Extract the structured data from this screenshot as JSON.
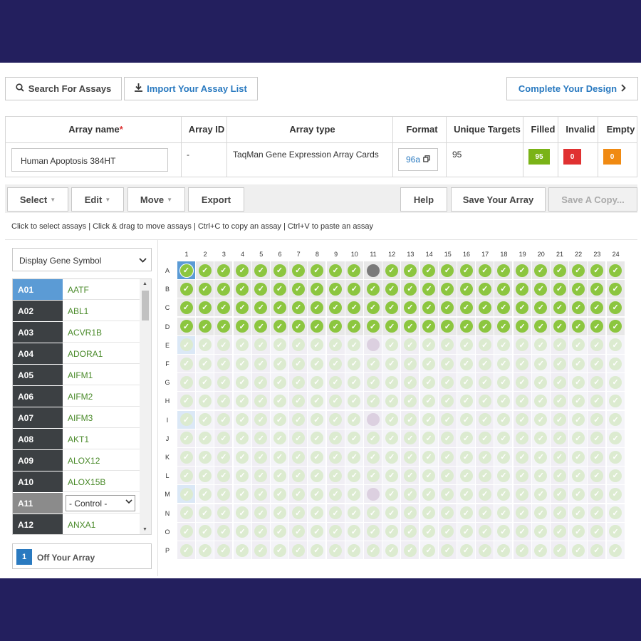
{
  "top": {
    "search_label": "Search For Assays",
    "import_label": "Import Your Assay List",
    "complete_label": "Complete Your Design"
  },
  "info": {
    "headers": {
      "array_name": "Array name",
      "required_mark": "*",
      "array_id": "Array ID",
      "array_type": "Array type",
      "format": "Format",
      "unique_targets": "Unique Targets",
      "filled": "Filled",
      "invalid": "Invalid",
      "empty": "Empty"
    },
    "array_name_value": "Human Apoptosis 384HT",
    "array_id_value": "-",
    "array_type_value": "TaqMan Gene Expression Array Cards",
    "format_value": "96a",
    "unique_targets_value": "95",
    "filled_count": "95",
    "invalid_count": "0",
    "empty_count": "0",
    "colors": {
      "filled": "#7ab317",
      "invalid": "#e03131",
      "empty": "#f08a12"
    }
  },
  "toolbar": {
    "select_label": "Select",
    "edit_label": "Edit",
    "move_label": "Move",
    "export_label": "Export",
    "help_label": "Help",
    "save_label": "Save Your Array",
    "save_copy_label": "Save A Copy..."
  },
  "hint": "Click to select assays | Click & drag to move assays | Ctrl+C to copy an assay | Ctrl+V to paste an assay",
  "display_select": "Display Gene Symbol",
  "list": [
    {
      "well": "A01",
      "gene": "AATF",
      "state": "selected"
    },
    {
      "well": "A02",
      "gene": "ABL1",
      "state": "normal"
    },
    {
      "well": "A03",
      "gene": "ACVR1B",
      "state": "normal"
    },
    {
      "well": "A04",
      "gene": "ADORA1",
      "state": "normal"
    },
    {
      "well": "A05",
      "gene": "AIFM1",
      "state": "normal"
    },
    {
      "well": "A06",
      "gene": "AIFM2",
      "state": "normal"
    },
    {
      "well": "A07",
      "gene": "AIFM3",
      "state": "normal"
    },
    {
      "well": "A08",
      "gene": "AKT1",
      "state": "normal"
    },
    {
      "well": "A09",
      "gene": "ALOX12",
      "state": "normal"
    },
    {
      "well": "A10",
      "gene": "ALOX15B",
      "state": "normal"
    },
    {
      "well": "A11",
      "gene": "- Control -",
      "state": "control"
    },
    {
      "well": "A12",
      "gene": "ANXA1",
      "state": "normal"
    }
  ],
  "off_array": {
    "count": "1",
    "label": "Off Your Array"
  },
  "grid": {
    "columns": [
      "1",
      "2",
      "3",
      "4",
      "5",
      "6",
      "7",
      "8",
      "9",
      "10",
      "11",
      "12",
      "13",
      "14",
      "15",
      "16",
      "17",
      "18",
      "19",
      "20",
      "21",
      "22",
      "23",
      "24"
    ],
    "rows": [
      "A",
      "B",
      "C",
      "D",
      "E",
      "F",
      "G",
      "H",
      "I",
      "J",
      "K",
      "L",
      "M",
      "N",
      "O",
      "P"
    ],
    "active_rows": 4,
    "control_column": 11,
    "selected_column": 1,
    "check_glyph": "✓",
    "colors": {
      "check": "#8cc63f",
      "check_faded": "#dcebd0",
      "control": "#7a7a7a",
      "control_faded": "#dcd0e0",
      "cell_bg": "#e8e8e8",
      "cell_bg_faded": "#f4f4f8",
      "selected_bg": "#5b9bd5",
      "selected_bg_faded": "#dbe8f6"
    }
  }
}
